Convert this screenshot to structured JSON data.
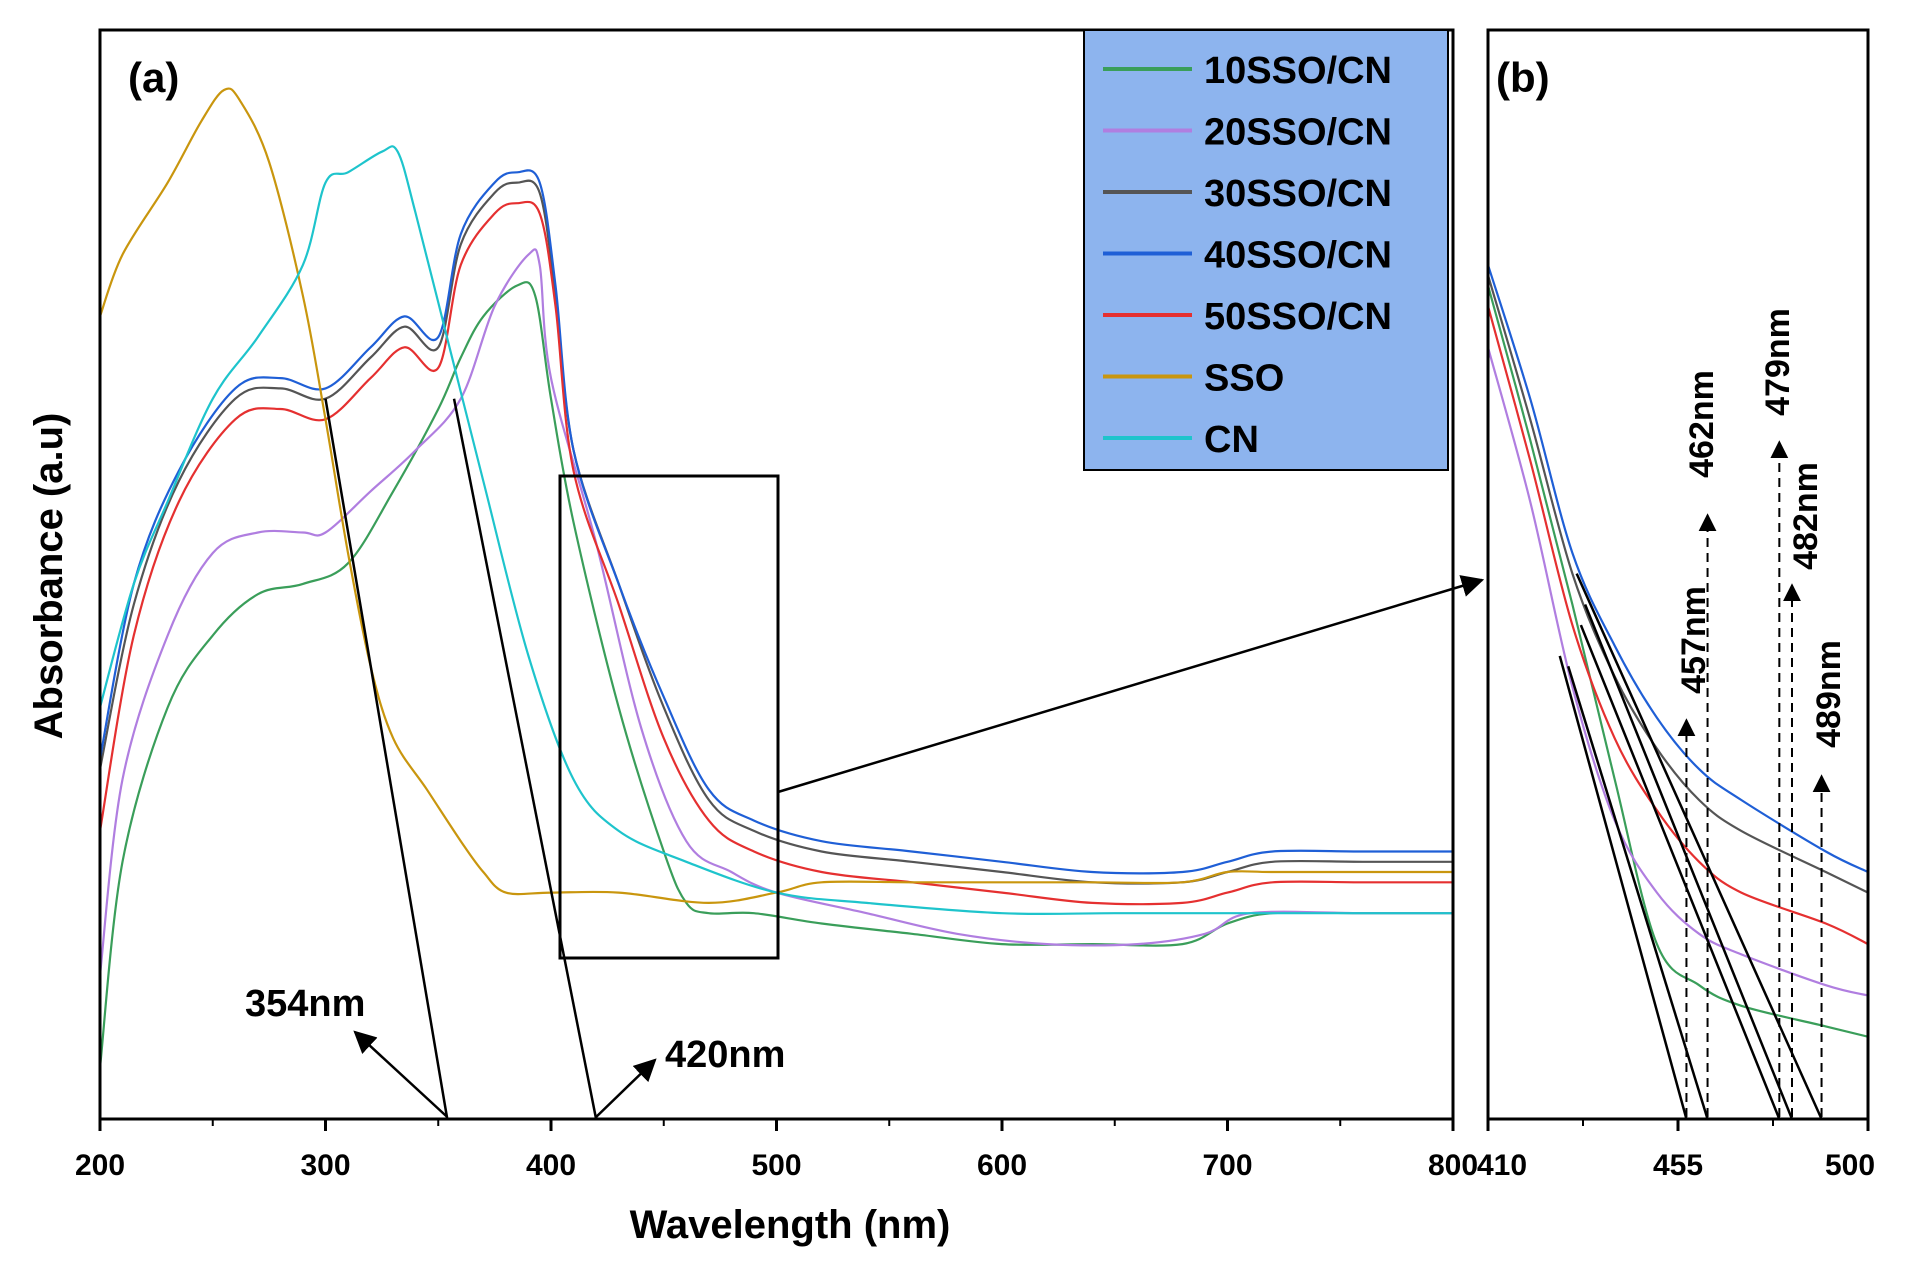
{
  "chart_data": [
    {
      "panel": "(a)",
      "type": "line",
      "title": "",
      "xlabel": "Wavelength (nm)",
      "ylabel": "Absorbance (a.u)",
      "xlim": [
        200,
        800
      ],
      "ylim": [
        0,
        100
      ],
      "x_ticks": [
        200,
        300,
        400,
        500,
        600,
        700,
        800
      ],
      "x_tick_labels": [
        "200",
        "300",
        "400",
        "500",
        "600",
        "700",
        "800"
      ],
      "legend": {
        "position": "top-right",
        "background": "#8db4ee",
        "entries": [
          {
            "name": "10SSO/CN",
            "color": "#3a9e5a"
          },
          {
            "name": "20SSO/CN",
            "color": "#b07ee0"
          },
          {
            "name": "30SSO/CN",
            "color": "#555555"
          },
          {
            "name": "40SSO/CN",
            "color": "#1f5fd6"
          },
          {
            "name": "50SSO/CN",
            "color": "#e53030"
          },
          {
            "name": "SSO",
            "color": "#c9960e"
          },
          {
            "name": "CN",
            "color": "#1ec4cc"
          }
        ]
      },
      "series": [
        {
          "name": "10SSO/CN",
          "color": "#3a9e5a",
          "points": [
            [
              200,
              5
            ],
            [
              210,
              25
            ],
            [
              230,
              40
            ],
            [
              250,
              47
            ],
            [
              270,
              51
            ],
            [
              290,
              52
            ],
            [
              310,
              54
            ],
            [
              330,
              61
            ],
            [
              350,
              69
            ],
            [
              360,
              74
            ],
            [
              370,
              78
            ],
            [
              385,
              81
            ],
            [
              393,
              80
            ],
            [
              400,
              70
            ],
            [
              410,
              58
            ],
            [
              430,
              40
            ],
            [
              450,
              26
            ],
            [
              460,
              21
            ],
            [
              470,
              20
            ],
            [
              490,
              20
            ],
            [
              520,
              19
            ],
            [
              560,
              18
            ],
            [
              600,
              17
            ],
            [
              640,
              17
            ],
            [
              680,
              17
            ],
            [
              700,
              19
            ],
            [
              720,
              20
            ],
            [
              760,
              20
            ],
            [
              800,
              20
            ]
          ]
        },
        {
          "name": "20SSO/CN",
          "color": "#b07ee0",
          "points": [
            [
              200,
              14
            ],
            [
              210,
              33
            ],
            [
              230,
              47
            ],
            [
              250,
              55
            ],
            [
              270,
              57
            ],
            [
              290,
              57
            ],
            [
              300,
              57
            ],
            [
              320,
              61
            ],
            [
              340,
              65
            ],
            [
              360,
              70
            ],
            [
              375,
              79
            ],
            [
              390,
              84
            ],
            [
              395,
              83
            ],
            [
              400,
              72
            ],
            [
              420,
              56
            ],
            [
              440,
              38
            ],
            [
              460,
              27
            ],
            [
              480,
              24
            ],
            [
              500,
              22
            ],
            [
              540,
              20
            ],
            [
              580,
              18
            ],
            [
              620,
              17
            ],
            [
              660,
              17
            ],
            [
              690,
              18
            ],
            [
              710,
              20
            ],
            [
              760,
              20
            ],
            [
              800,
              20
            ]
          ]
        },
        {
          "name": "30SSO/CN",
          "color": "#555555",
          "points": [
            [
              200,
              34
            ],
            [
              215,
              50
            ],
            [
              235,
              62
            ],
            [
              260,
              70
            ],
            [
              280,
              71
            ],
            [
              300,
              70
            ],
            [
              320,
              74
            ],
            [
              335,
              77
            ],
            [
              350,
              75
            ],
            [
              360,
              85
            ],
            [
              375,
              90
            ],
            [
              385,
              91
            ],
            [
              395,
              90
            ],
            [
              402,
              80
            ],
            [
              410,
              65
            ],
            [
              430,
              52
            ],
            [
              450,
              40
            ],
            [
              470,
              31
            ],
            [
              490,
              28
            ],
            [
              520,
              26
            ],
            [
              560,
              25
            ],
            [
              600,
              24
            ],
            [
              640,
              23
            ],
            [
              680,
              23
            ],
            [
              700,
              24
            ],
            [
              720,
              25
            ],
            [
              760,
              25
            ],
            [
              800,
              25
            ]
          ]
        },
        {
          "name": "40SSO/CN",
          "color": "#1f5fd6",
          "points": [
            [
              200,
              35
            ],
            [
              215,
              52
            ],
            [
              235,
              63
            ],
            [
              260,
              71
            ],
            [
              280,
              72
            ],
            [
              300,
              71
            ],
            [
              320,
              75
            ],
            [
              335,
              78
            ],
            [
              350,
              76
            ],
            [
              360,
              86
            ],
            [
              375,
              91
            ],
            [
              385,
              92
            ],
            [
              395,
              91
            ],
            [
              402,
              81
            ],
            [
              410,
              65
            ],
            [
              430,
              52
            ],
            [
              450,
              41
            ],
            [
              470,
              32
            ],
            [
              490,
              29
            ],
            [
              520,
              27
            ],
            [
              560,
              26
            ],
            [
              600,
              25
            ],
            [
              640,
              24
            ],
            [
              680,
              24
            ],
            [
              700,
              25
            ],
            [
              720,
              26
            ],
            [
              760,
              26
            ],
            [
              800,
              26
            ]
          ]
        },
        {
          "name": "50SSO/CN",
          "color": "#e53030",
          "points": [
            [
              200,
              28
            ],
            [
              215,
              47
            ],
            [
              235,
              60
            ],
            [
              260,
              68
            ],
            [
              280,
              69
            ],
            [
              300,
              68
            ],
            [
              320,
              72
            ],
            [
              335,
              75
            ],
            [
              350,
              73
            ],
            [
              360,
              83
            ],
            [
              375,
              88
            ],
            [
              385,
              89
            ],
            [
              395,
              88
            ],
            [
              402,
              79
            ],
            [
              410,
              63
            ],
            [
              430,
              50
            ],
            [
              450,
              37
            ],
            [
              470,
              29
            ],
            [
              490,
              26
            ],
            [
              520,
              24
            ],
            [
              560,
              23
            ],
            [
              600,
              22
            ],
            [
              640,
              21
            ],
            [
              680,
              21
            ],
            [
              700,
              22
            ],
            [
              720,
              23
            ],
            [
              760,
              23
            ],
            [
              800,
              23
            ]
          ]
        },
        {
          "name": "SSO",
          "color": "#c9960e",
          "points": [
            [
              200,
              78
            ],
            [
              210,
              84
            ],
            [
              230,
              91
            ],
            [
              245,
              97
            ],
            [
              255,
              100
            ],
            [
              262,
              99
            ],
            [
              275,
              93
            ],
            [
              290,
              80
            ],
            [
              300,
              68
            ],
            [
              310,
              55
            ],
            [
              320,
              44
            ],
            [
              330,
              37
            ],
            [
              345,
              32
            ],
            [
              360,
              27
            ],
            [
              370,
              24
            ],
            [
              380,
              22
            ],
            [
              400,
              22
            ],
            [
              430,
              22
            ],
            [
              470,
              21
            ],
            [
              500,
              22
            ],
            [
              520,
              23
            ],
            [
              560,
              23
            ],
            [
              600,
              23
            ],
            [
              640,
              23
            ],
            [
              680,
              23
            ],
            [
              700,
              24
            ],
            [
              720,
              24
            ],
            [
              760,
              24
            ],
            [
              800,
              24
            ]
          ]
        },
        {
          "name": "CN",
          "color": "#1ec4cc",
          "points": [
            [
              200,
              40
            ],
            [
              215,
              52
            ],
            [
              230,
              60
            ],
            [
              250,
              70
            ],
            [
              270,
              76
            ],
            [
              290,
              83
            ],
            [
              300,
              91
            ],
            [
              310,
              92
            ],
            [
              325,
              94
            ],
            [
              332,
              94
            ],
            [
              340,
              88
            ],
            [
              355,
              75
            ],
            [
              370,
              62
            ],
            [
              390,
              45
            ],
            [
              410,
              33
            ],
            [
              430,
              28
            ],
            [
              460,
              25
            ],
            [
              500,
              22
            ],
            [
              540,
              21
            ],
            [
              600,
              20
            ],
            [
              650,
              20
            ],
            [
              700,
              20
            ],
            [
              750,
              20
            ],
            [
              800,
              20
            ]
          ]
        }
      ],
      "annotations": [
        {
          "text": "354nm",
          "x": 354
        },
        {
          "text": "420nm",
          "x": 420
        }
      ]
    },
    {
      "panel": "(b)",
      "type": "line",
      "title": "",
      "xlabel": "",
      "ylabel": "",
      "xlim": [
        410,
        500
      ],
      "ylim": [
        0,
        100
      ],
      "x_ticks": [
        410,
        455,
        500
      ],
      "x_tick_labels": [
        "410",
        "455",
        "500"
      ],
      "series": [
        {
          "name": "10SSO/CN",
          "color": "#3a9e5a",
          "points": [
            [
              410,
              81
            ],
            [
              420,
              66
            ],
            [
              430,
              50
            ],
            [
              440,
              33
            ],
            [
              450,
              17
            ],
            [
              460,
              13
            ],
            [
              470,
              11
            ],
            [
              490,
              9
            ],
            [
              500,
              8
            ]
          ]
        },
        {
          "name": "20SSO/CN",
          "color": "#b07ee0",
          "points": [
            [
              410,
              75
            ],
            [
              420,
              60
            ],
            [
              430,
              42
            ],
            [
              440,
              29
            ],
            [
              450,
              22
            ],
            [
              460,
              18
            ],
            [
              470,
              16
            ],
            [
              490,
              13
            ],
            [
              500,
              12
            ]
          ]
        },
        {
          "name": "30SSO/CN",
          "color": "#555555",
          "points": [
            [
              410,
              82
            ],
            [
              420,
              68
            ],
            [
              430,
              53
            ],
            [
              440,
              43
            ],
            [
              450,
              36
            ],
            [
              460,
              31
            ],
            [
              470,
              28
            ],
            [
              490,
              24
            ],
            [
              500,
              22
            ]
          ]
        },
        {
          "name": "40SSO/CN",
          "color": "#1f5fd6",
          "points": [
            [
              410,
              83
            ],
            [
              420,
              70
            ],
            [
              430,
              55
            ],
            [
              440,
              46
            ],
            [
              450,
              39
            ],
            [
              460,
              34
            ],
            [
              470,
              31
            ],
            [
              490,
              26
            ],
            [
              500,
              24
            ]
          ]
        },
        {
          "name": "50SSO/CN",
          "color": "#e53030",
          "points": [
            [
              410,
              79
            ],
            [
              420,
              64
            ],
            [
              430,
              48
            ],
            [
              440,
              37
            ],
            [
              450,
              30
            ],
            [
              460,
              25
            ],
            [
              470,
              22
            ],
            [
              490,
              19
            ],
            [
              500,
              17
            ]
          ]
        }
      ],
      "annotations": [
        {
          "text": "457nm",
          "x": 457
        },
        {
          "text": "462nm",
          "x": 462
        },
        {
          "text": "479nm",
          "x": 479
        },
        {
          "text": "482nm",
          "x": 482
        },
        {
          "text": "489nm",
          "x": 489
        }
      ]
    }
  ]
}
